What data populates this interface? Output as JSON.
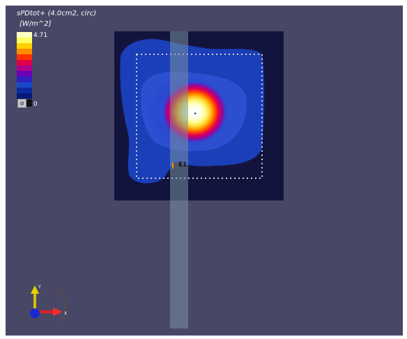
{
  "viewer": {
    "quantity_title": "sPDtot+ (4.0cm2, circ)",
    "unit_label": "[W/m^2]",
    "colorbar": {
      "max_label": "4.71",
      "min_label": "0",
      "colors": [
        "#ffffc0",
        "#ffff60",
        "#ffd000",
        "#ff8c00",
        "#ff3000",
        "#e0004a",
        "#b0008e",
        "#6a00b8",
        "#3020c0",
        "#1848c8",
        "#0c2a9c",
        "#081878"
      ]
    },
    "probe_label": "E1",
    "axis_labels": {
      "y": "Y",
      "x": "X"
    },
    "colors": {
      "background": "#484766",
      "plane": "#13143e",
      "phantom": "#7a90a0",
      "dotted_box": "#d0d0d0"
    }
  }
}
